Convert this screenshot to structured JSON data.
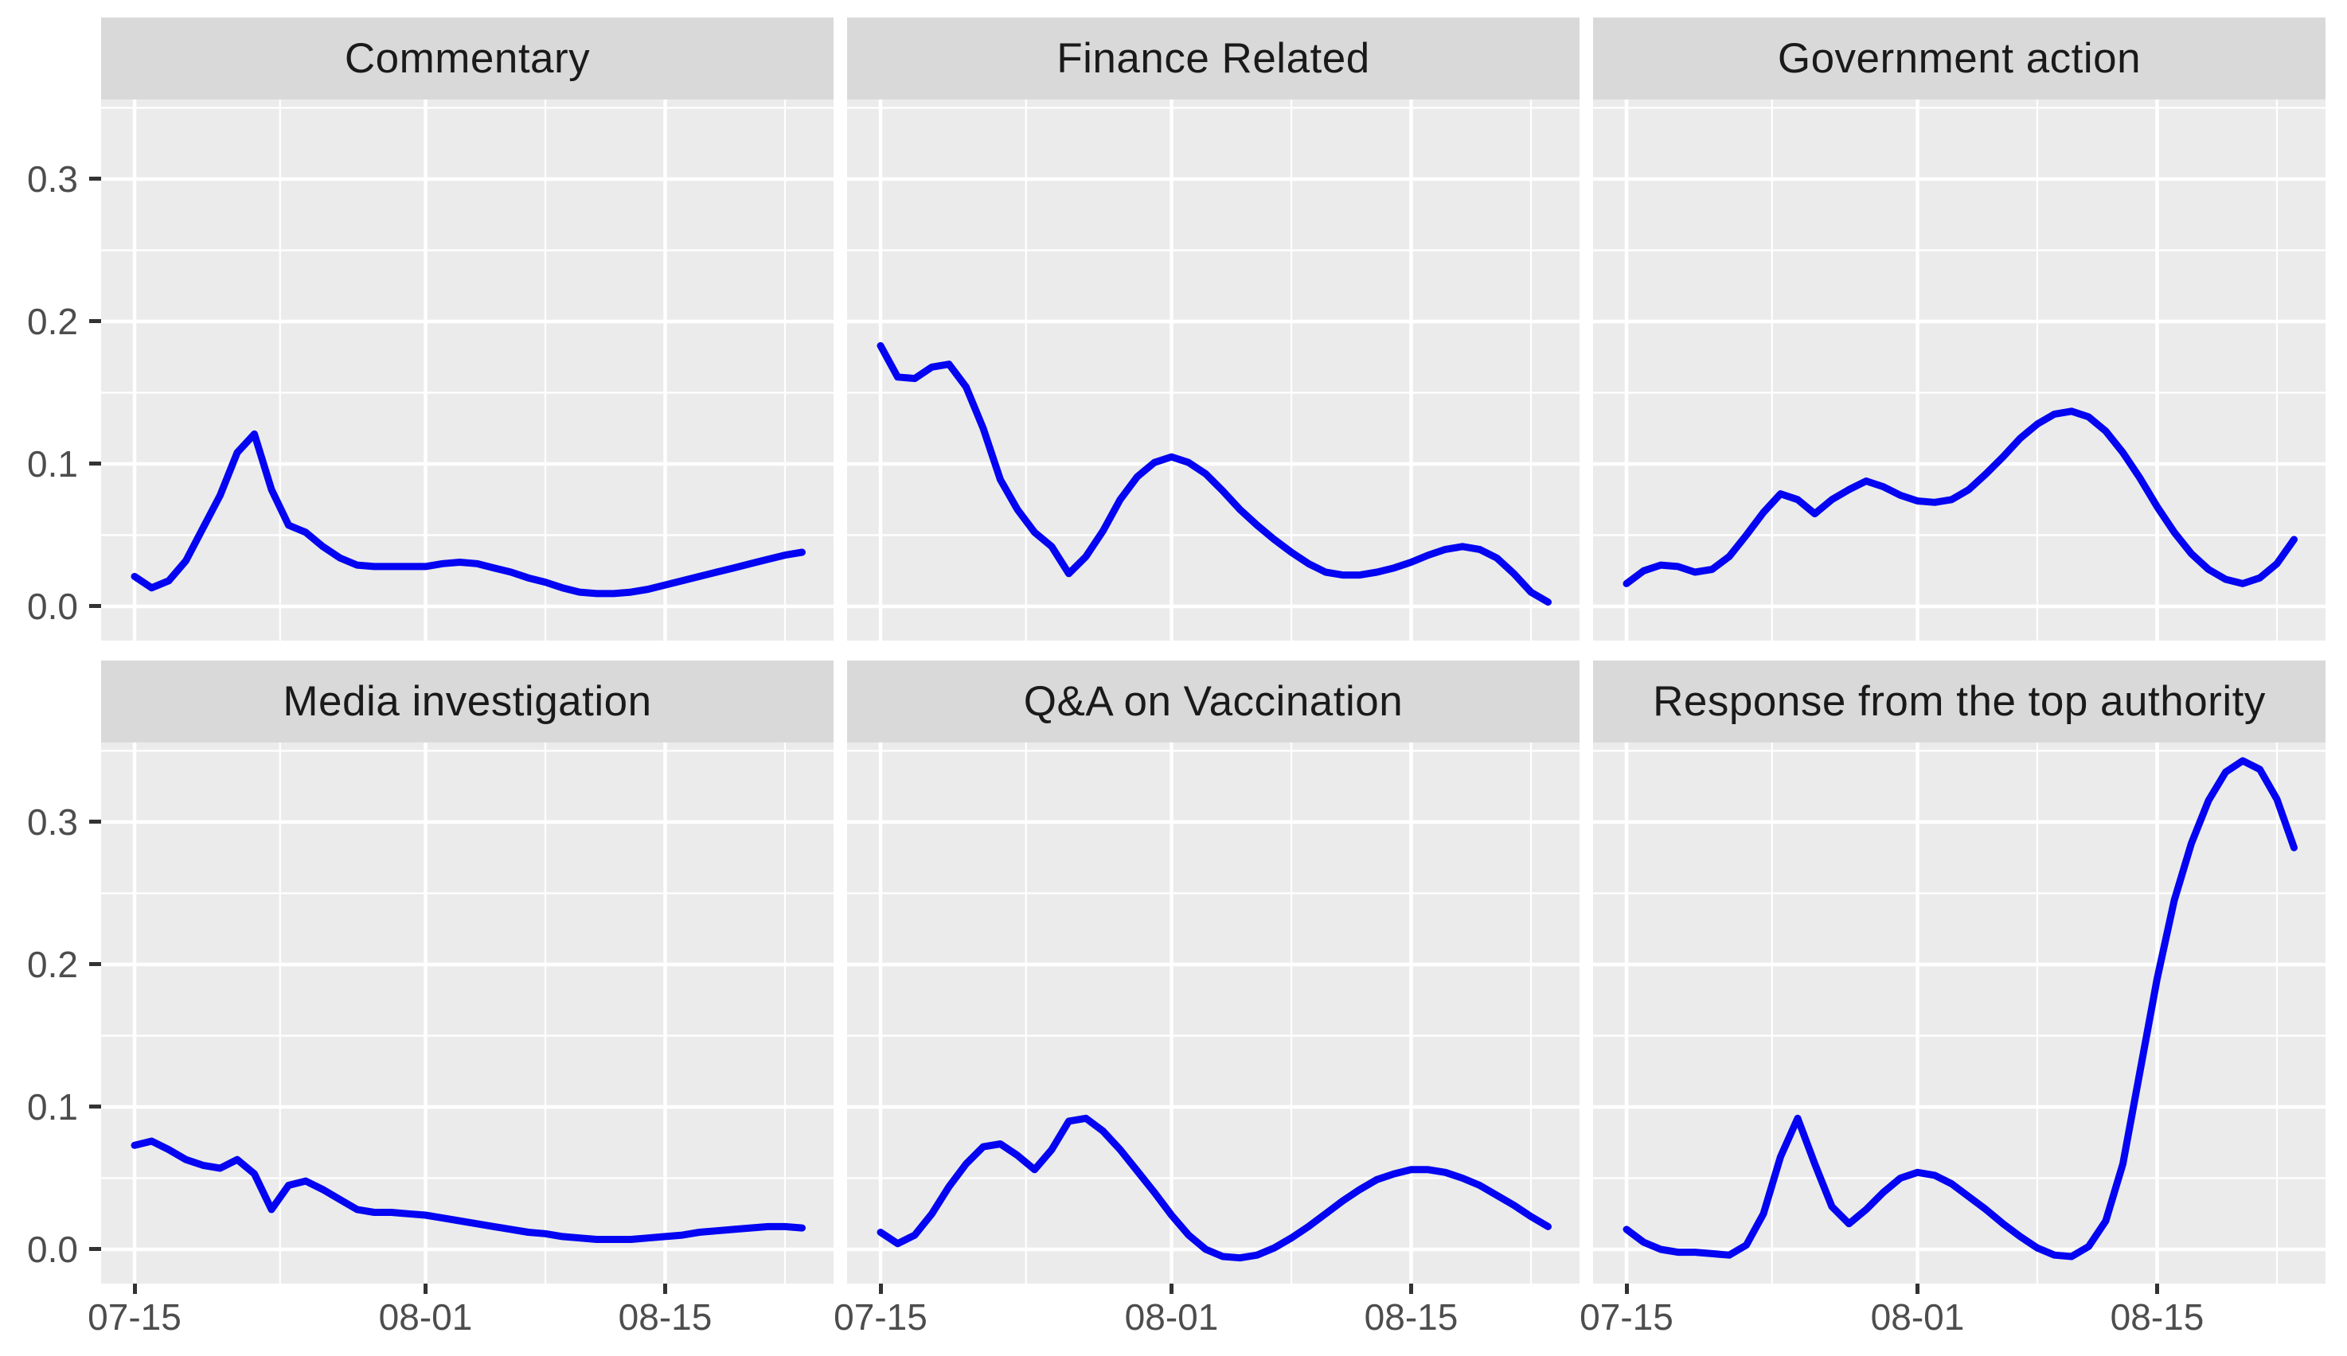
{
  "figure": {
    "kind": "faceted line chart (ggplot2 style)",
    "facet_layout": {
      "rows": 2,
      "cols": 3
    }
  },
  "colors": {
    "background": "#FFFFFF",
    "panel_bg": "#EBEBEB",
    "strip_bg": "#D9D9D9",
    "strip_text": "#1A1A1A",
    "grid": "#FFFFFF",
    "line": "#0404F2",
    "axis_text": "#4D4D4D",
    "tick_mark": "#333333"
  },
  "chart_data": {
    "type": "line",
    "title": "",
    "xlabel": "",
    "ylabel": "",
    "x_unit": "day",
    "x_start_date": "07-15",
    "x_end_date": "08-23",
    "x_step_days": 1,
    "legend": "none",
    "grid": "on",
    "x_axis": {
      "domain_days": [
        -1.95,
        40.95
      ],
      "ticks": [
        {
          "label": "07-15",
          "day": 0
        },
        {
          "label": "08-01",
          "day": 17
        },
        {
          "label": "08-15",
          "day": 31
        }
      ],
      "minor_days": [
        8.5,
        24,
        38
      ]
    },
    "y_axis": {
      "domain": [
        -0.024,
        0.356
      ],
      "ticks": [
        {
          "label": "0.0",
          "value": 0.0
        },
        {
          "label": "0.1",
          "value": 0.1
        },
        {
          "label": "0.2",
          "value": 0.2
        },
        {
          "label": "0.3",
          "value": 0.3
        }
      ],
      "minor_values": [
        0.05,
        0.15,
        0.25,
        0.35
      ]
    },
    "facets": [
      {
        "label": "Commentary",
        "values": [
          0.021,
          0.013,
          0.018,
          0.032,
          0.055,
          0.078,
          0.108,
          0.121,
          0.082,
          0.057,
          0.052,
          0.042,
          0.034,
          0.029,
          0.028,
          0.028,
          0.028,
          0.028,
          0.03,
          0.031,
          0.03,
          0.027,
          0.024,
          0.02,
          0.017,
          0.013,
          0.01,
          0.009,
          0.009,
          0.01,
          0.012,
          0.015,
          0.018,
          0.021,
          0.024,
          0.027,
          0.03,
          0.033,
          0.036,
          0.038
        ]
      },
      {
        "label": "Finance Related",
        "values": [
          0.183,
          0.161,
          0.16,
          0.168,
          0.17,
          0.154,
          0.125,
          0.089,
          0.068,
          0.052,
          0.042,
          0.023,
          0.035,
          0.053,
          0.075,
          0.091,
          0.101,
          0.105,
          0.101,
          0.093,
          0.081,
          0.068,
          0.057,
          0.047,
          0.038,
          0.03,
          0.024,
          0.022,
          0.022,
          0.024,
          0.027,
          0.031,
          0.036,
          0.04,
          0.042,
          0.04,
          0.034,
          0.023,
          0.01,
          0.003
        ]
      },
      {
        "label": "Government action",
        "values": [
          0.016,
          0.025,
          0.029,
          0.028,
          0.024,
          0.026,
          0.035,
          0.05,
          0.066,
          0.079,
          0.075,
          0.065,
          0.075,
          0.082,
          0.088,
          0.084,
          0.078,
          0.074,
          0.073,
          0.075,
          0.082,
          0.093,
          0.105,
          0.118,
          0.128,
          0.135,
          0.137,
          0.133,
          0.123,
          0.108,
          0.09,
          0.07,
          0.052,
          0.037,
          0.026,
          0.019,
          0.016,
          0.02,
          0.03,
          0.047
        ]
      },
      {
        "label": "Media investigation",
        "values": [
          0.073,
          0.076,
          0.07,
          0.063,
          0.059,
          0.057,
          0.063,
          0.053,
          0.028,
          0.045,
          0.048,
          0.042,
          0.035,
          0.028,
          0.026,
          0.026,
          0.025,
          0.024,
          0.022,
          0.02,
          0.018,
          0.016,
          0.014,
          0.012,
          0.011,
          0.009,
          0.008,
          0.007,
          0.007,
          0.007,
          0.008,
          0.009,
          0.01,
          0.012,
          0.013,
          0.014,
          0.015,
          0.016,
          0.016,
          0.015
        ]
      },
      {
        "label": "Q&A on Vaccination",
        "values": [
          0.012,
          0.004,
          0.01,
          0.025,
          0.044,
          0.06,
          0.072,
          0.074,
          0.066,
          0.056,
          0.07,
          0.09,
          0.092,
          0.083,
          0.07,
          0.055,
          0.04,
          0.024,
          0.01,
          0.0,
          -0.005,
          -0.006,
          -0.004,
          0.001,
          0.008,
          0.016,
          0.025,
          0.034,
          0.042,
          0.049,
          0.053,
          0.056,
          0.056,
          0.054,
          0.05,
          0.045,
          0.038,
          0.031,
          0.023,
          0.016
        ]
      },
      {
        "label": "Response from the top authority",
        "values": [
          0.014,
          0.005,
          0.0,
          -0.002,
          -0.002,
          -0.003,
          -0.004,
          0.003,
          0.025,
          0.065,
          0.092,
          0.06,
          0.03,
          0.018,
          0.028,
          0.04,
          0.05,
          0.054,
          0.052,
          0.046,
          0.037,
          0.028,
          0.018,
          0.009,
          0.001,
          -0.004,
          -0.005,
          0.002,
          0.02,
          0.06,
          0.125,
          0.19,
          0.245,
          0.285,
          0.315,
          0.335,
          0.343,
          0.337,
          0.316,
          0.282
        ]
      }
    ]
  }
}
